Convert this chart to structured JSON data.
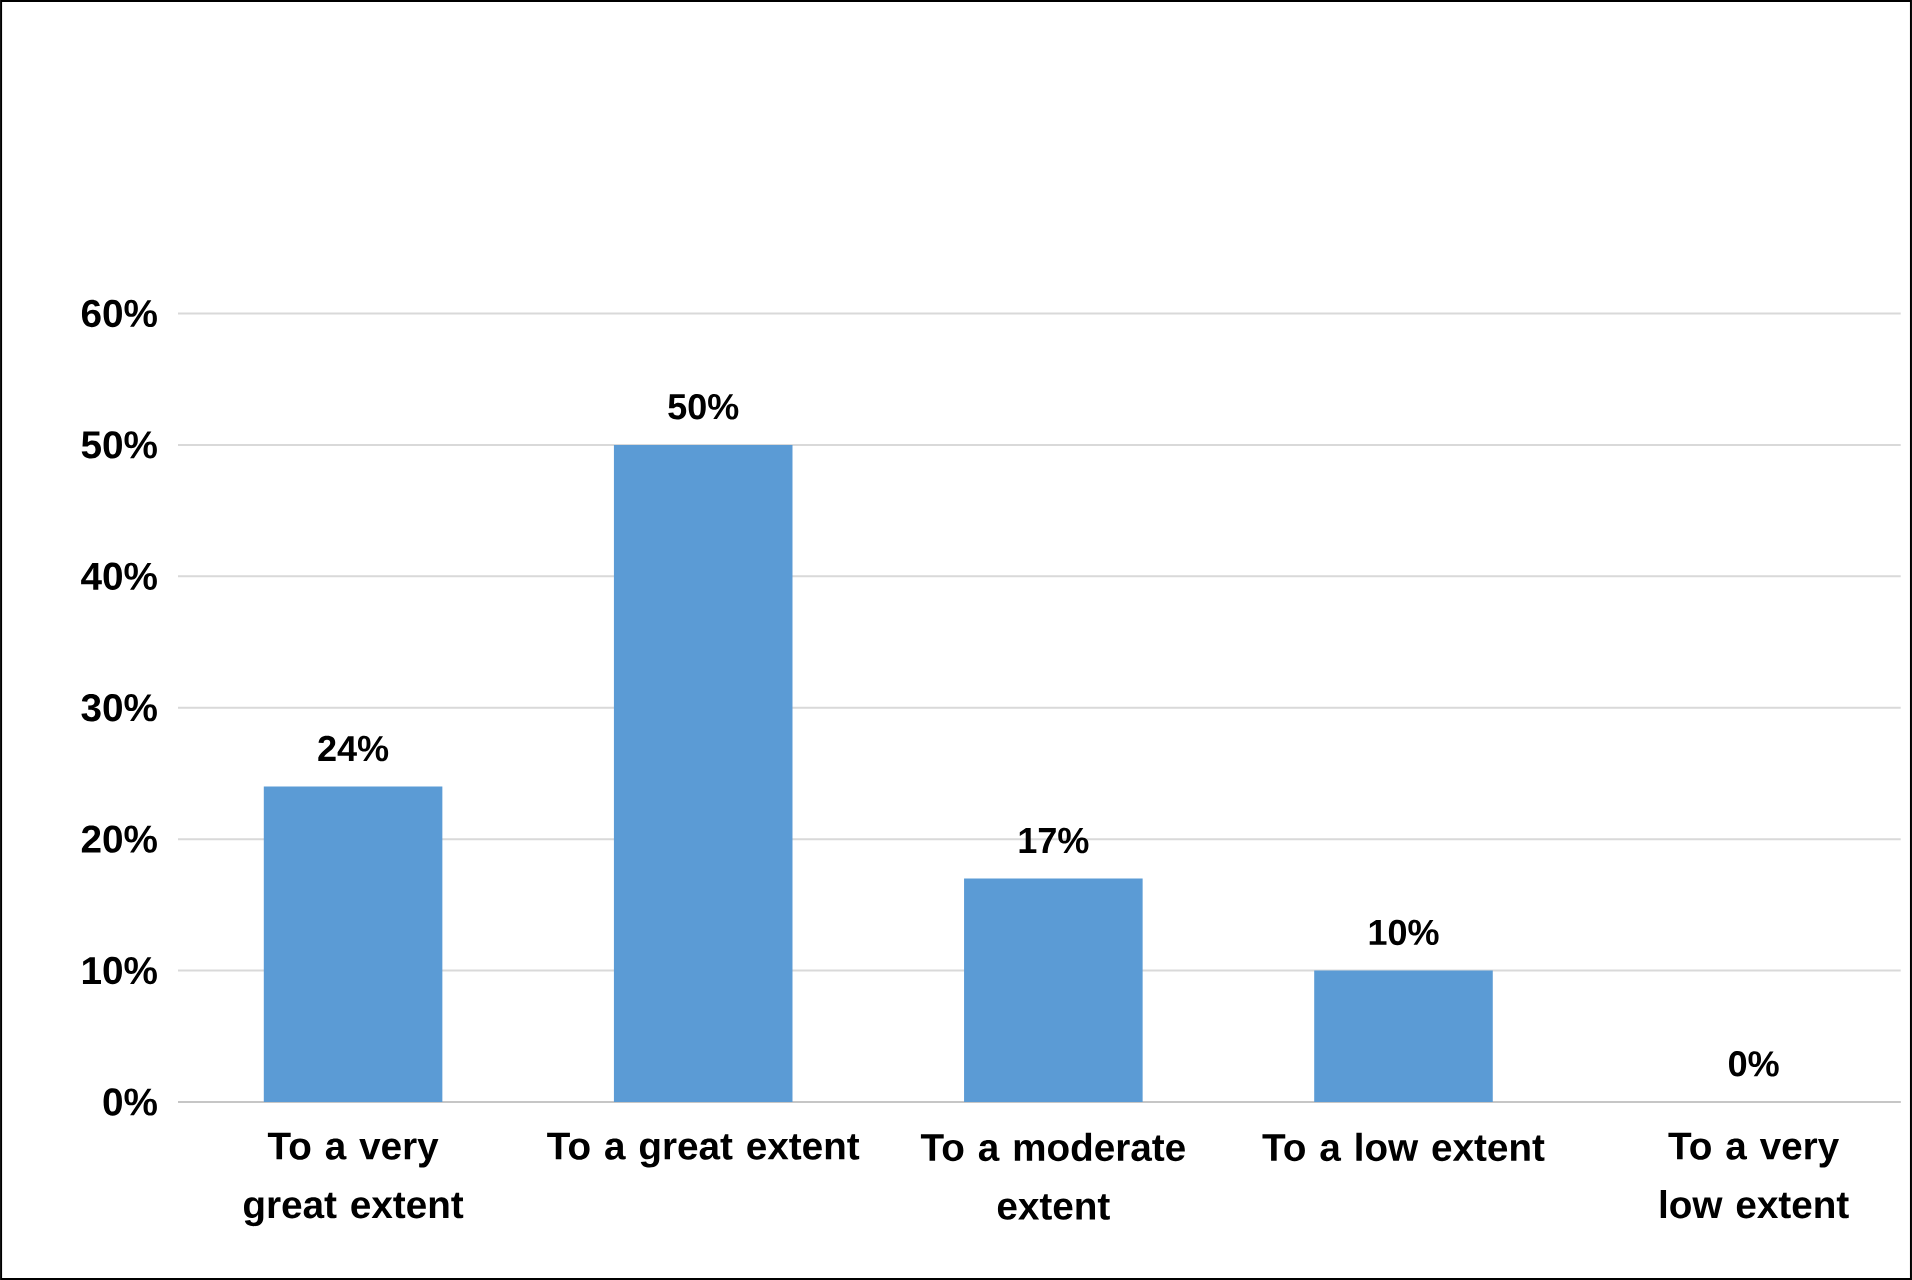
{
  "chart_data": {
    "type": "bar",
    "categories": [
      "To a very great extent",
      "To a great extent",
      "To a moderate extent",
      "To a low extent",
      "To a very low extent"
    ],
    "values": [
      24,
      50,
      17,
      10,
      0
    ],
    "value_labels": [
      "24%",
      "50%",
      "17%",
      "10%",
      "0%"
    ],
    "color": "#5b9bd5",
    "ylim": [
      0,
      60
    ],
    "yticks": [
      {
        "value": 0,
        "label": "0%"
      },
      {
        "value": 10,
        "label": "10%"
      },
      {
        "value": 20,
        "label": "20%"
      },
      {
        "value": 30,
        "label": "30%"
      },
      {
        "value": 40,
        "label": "40%"
      },
      {
        "value": 50,
        "label": "50%"
      },
      {
        "value": 60,
        "label": "60%"
      }
    ],
    "grid": "y"
  }
}
